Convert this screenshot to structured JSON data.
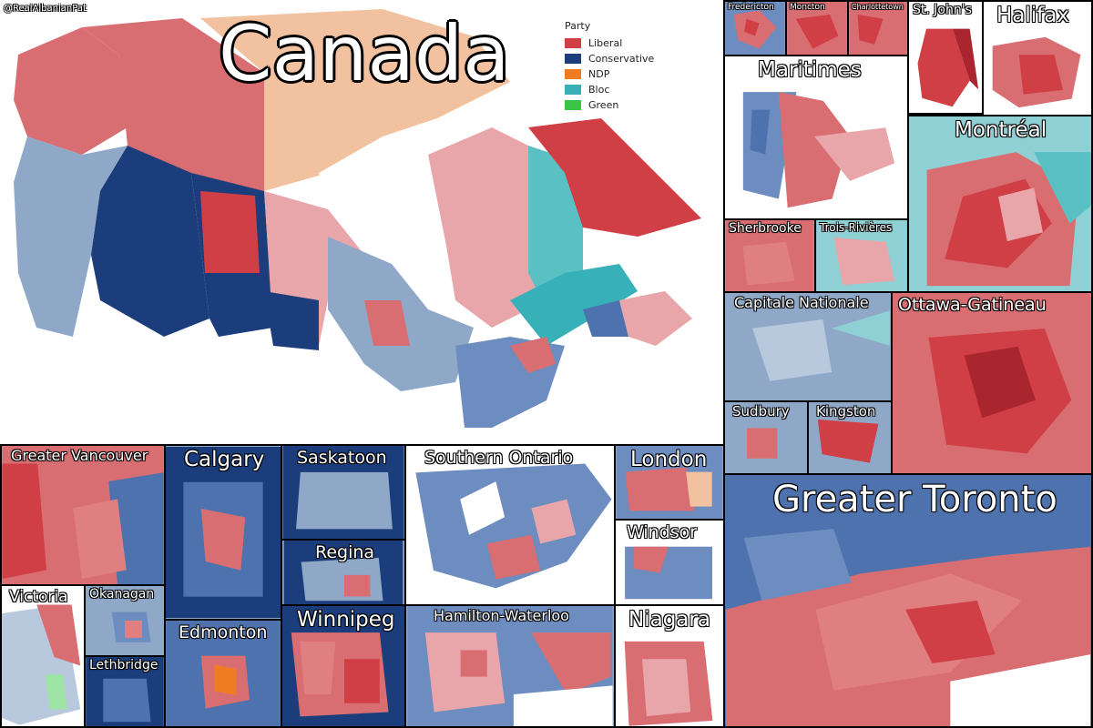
{
  "credit": "@RealAlbanianPat",
  "main_title": "Canada",
  "legend": {
    "title": "Party",
    "items": [
      {
        "label": "Liberal",
        "color": "#d03e46"
      },
      {
        "label": "Conservative",
        "color": "#1b3d7c"
      },
      {
        "label": "NDP",
        "color": "#f07c22"
      },
      {
        "label": "Bloc",
        "color": "#37b0b7"
      },
      {
        "label": "Green",
        "color": "#3cc448"
      }
    ]
  },
  "insets": {
    "fredericton": "Fredericton",
    "moncton": "Moncton",
    "charlottetown": "Charlottetown",
    "st_johns": "St. John's",
    "halifax": "Halifax",
    "maritimes": "Maritimes",
    "montreal": "Montréal",
    "sherbrooke": "Sherbrooke",
    "trois_rivieres": "Trois-Rivières",
    "capitale_nationale": "Capitale Nationale",
    "ottawa_gatineau": "Ottawa-Gatineau",
    "sudbury": "Sudbury",
    "kingston": "Kingston",
    "greater_vancouver": "Greater Vancouver",
    "calgary": "Calgary",
    "saskatoon": "Saskatoon",
    "regina": "Regina",
    "southern_ontario": "Southern Ontario",
    "london": "London",
    "windsor": "Windsor",
    "victoria": "Victoria",
    "okanagan": "Okanagan",
    "lethbridge": "Lethbridge",
    "edmonton": "Edmonton",
    "winnipeg": "Winnipeg",
    "hamilton_waterloo": "Hamilton-Waterloo",
    "niagara": "Niagara",
    "greater_toronto": "Greater Toronto"
  }
}
